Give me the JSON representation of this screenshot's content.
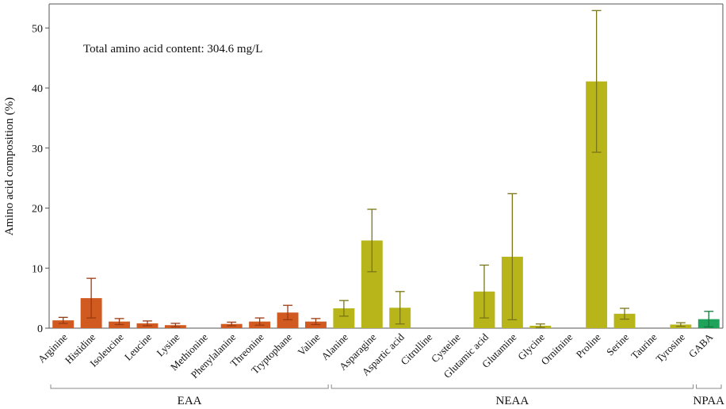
{
  "chart_data": {
    "type": "bar",
    "ylabel": "Amino acid composition (%)",
    "ylim": [
      0,
      54
    ],
    "yticks": [
      0,
      10,
      20,
      30,
      40,
      50
    ],
    "grid": false,
    "annotation": "Total amino acid content: 304.6 mg/L",
    "categories": [
      "Arginine",
      "Histidine",
      "Isoleucine",
      "Leucine",
      "Lysine",
      "Methionine",
      "Phenylalanine",
      "Threonine",
      "Tryptophane",
      "Valine",
      "Alanine",
      "Asparagine",
      "Aspartic acid",
      "Citrulline",
      "Cysteine",
      "Glutamic acid",
      "Glutamine",
      "Glycine",
      "Ornitnine",
      "Proline",
      "Serine",
      "Taurine",
      "Tyrosine",
      "GABA"
    ],
    "values": [
      1.3,
      5.0,
      1.1,
      0.8,
      0.5,
      0,
      0.7,
      1.1,
      2.6,
      1.1,
      3.3,
      14.6,
      3.4,
      0,
      0,
      6.1,
      11.9,
      0.4,
      0,
      41.1,
      2.4,
      0,
      0.6,
      1.5
    ],
    "errors": [
      0.5,
      3.3,
      0.5,
      0.4,
      0.3,
      0,
      0.3,
      0.6,
      1.2,
      0.5,
      1.3,
      5.2,
      2.7,
      0,
      0,
      4.4,
      10.5,
      0.3,
      0,
      11.8,
      0.9,
      0,
      0.3,
      1.3
    ],
    "groups": [
      {
        "name": "EAA",
        "start": 0,
        "end": 9,
        "color": "#d05a1f"
      },
      {
        "name": "NEAA",
        "start": 10,
        "end": 22,
        "color": "#b8b51a"
      },
      {
        "name": "NPAA",
        "start": 23,
        "end": 23,
        "color": "#1fa35a"
      }
    ],
    "error_colors": {
      "EAA": "#9a3a12",
      "NEAA": "#7a7618",
      "NPAA": "#127a3c"
    }
  }
}
